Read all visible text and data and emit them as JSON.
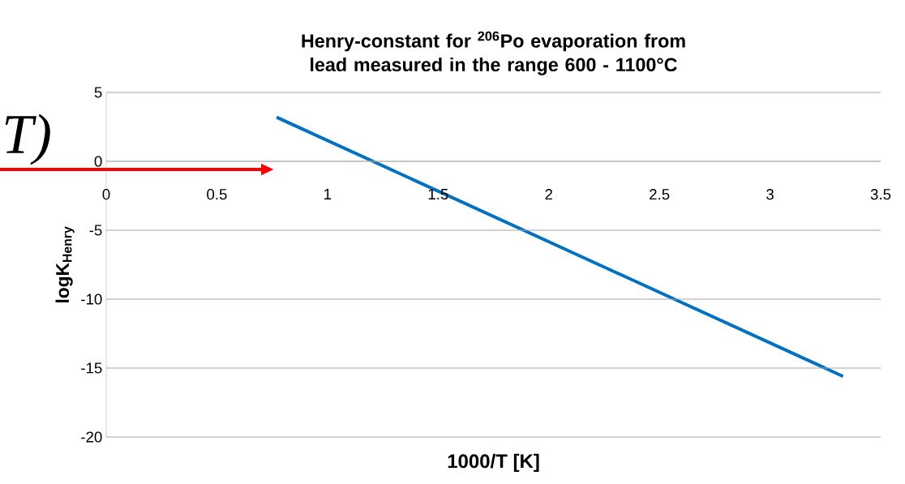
{
  "chart_data": {
    "type": "line",
    "title": "Henry-constant for $^{206}$Po evaporation from lead measured in the range 600 - 1100°C",
    "xlabel": "1000/T [K]",
    "ylabel": "logK$_{Henry}$",
    "annotations": [
      "T)"
    ],
    "series": [
      {
        "color": "#0070c0",
        "x": [
          0.77,
          3.33
        ],
        "values": [
          3.2,
          -15.6
        ]
      }
    ],
    "xlim": [
      0,
      3.5
    ],
    "xticks": [
      0,
      0.5,
      1,
      1.5,
      2,
      2.5,
      3,
      3.5
    ],
    "ylim": [
      -20,
      5
    ],
    "yticks": [
      -20,
      -15,
      -10,
      -5,
      0,
      5
    ],
    "grid": "y",
    "marker": "none",
    "line_style": "solid"
  }
}
